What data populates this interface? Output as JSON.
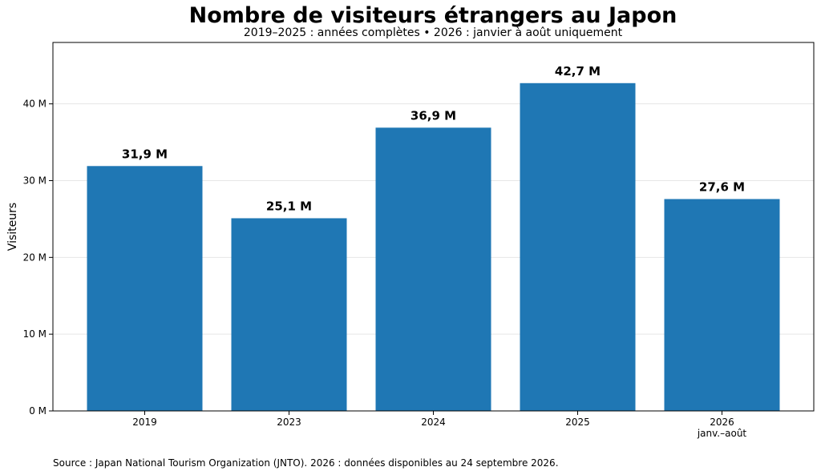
{
  "chart_data": {
    "type": "bar",
    "title": "Nombre de visiteurs étrangers au Japon",
    "subtitle": "2019–2025 : années complètes • 2026 : janvier à août uniquement",
    "ylabel": "Visiteurs",
    "xlabel": "",
    "categories": [
      "2019",
      "2023",
      "2024",
      "2025",
      "2026"
    ],
    "category_sublabels": [
      "",
      "",
      "",
      "",
      "janv.–août"
    ],
    "values": [
      31.9,
      25.1,
      36.9,
      42.7,
      27.6
    ],
    "data_labels": [
      "31,9 M",
      "25,1 M",
      "36,9 M",
      "42,7 M",
      "27,6 M"
    ],
    "ylim": [
      0,
      48
    ],
    "yticks": [
      0,
      10,
      20,
      30,
      40
    ],
    "ytick_labels": [
      "0 M",
      "10 M",
      "20 M",
      "30 M",
      "40 M"
    ],
    "grid": "horizontal",
    "bar_color": "#1f77b4",
    "source": "Source : Japan National Tourism Organization (JNTO). 2026 : données disponibles au 24 septembre 2026."
  }
}
